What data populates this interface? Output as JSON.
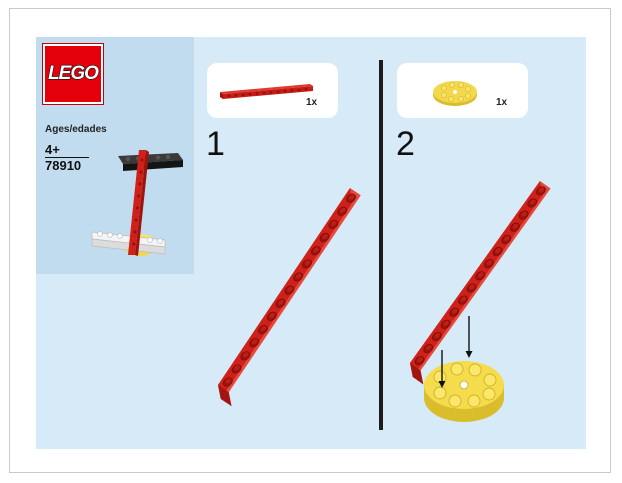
{
  "brand": {
    "logo_text": "LEGO",
    "color": "#e3000b"
  },
  "set_info": {
    "ages_label": "Ages/edades",
    "age": "4+",
    "set_number": "78910"
  },
  "steps": [
    {
      "number": "1",
      "parts": [
        {
          "name": "red-technic-beam",
          "quantity": "1x",
          "color": "#d0201a"
        }
      ]
    },
    {
      "number": "2",
      "parts": [
        {
          "name": "yellow-round-plate",
          "quantity": "1x",
          "color": "#f2d84a"
        }
      ]
    }
  ],
  "colors": {
    "page_background": "#d7eaf7",
    "info_panel": "#c1dbef",
    "beam_red": "#d0201a",
    "plate_yellow": "#f2d84a",
    "divider": "#1c1c1c"
  }
}
